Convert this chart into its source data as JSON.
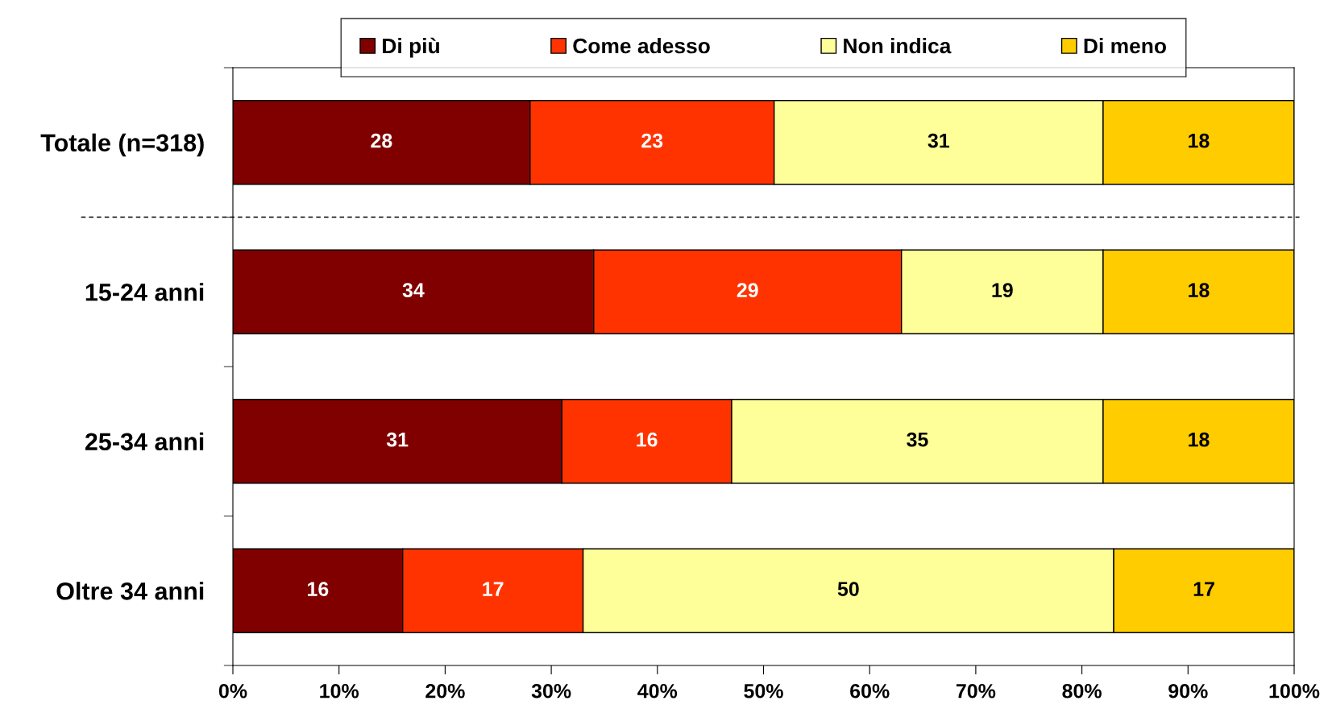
{
  "chart_data": {
    "type": "bar",
    "orientation": "horizontal",
    "stacked": true,
    "data_labels": true,
    "legend": "top",
    "grid": false,
    "categories": [
      "Totale (n=318)",
      "15-24 anni",
      "25-34 anni",
      "Oltre 34 anni"
    ],
    "series": [
      {
        "name": "Di più",
        "color": "#800000",
        "values": [
          28,
          34,
          31,
          16
        ]
      },
      {
        "name": "Come adesso",
        "color": "#ff3300",
        "values": [
          23,
          29,
          16,
          17
        ]
      },
      {
        "name": "Non indica",
        "color": "#ffff99",
        "values": [
          31,
          19,
          35,
          50
        ]
      },
      {
        "name": "Di meno",
        "color": "#ffcc00",
        "values": [
          18,
          18,
          18,
          17
        ]
      }
    ],
    "xlim": [
      0,
      100
    ],
    "xticks": [
      {
        "value": 0,
        "label": "0%"
      },
      {
        "value": 10,
        "label": "10%"
      },
      {
        "value": 20,
        "label": "20%"
      },
      {
        "value": 30,
        "label": "30%"
      },
      {
        "value": 40,
        "label": "40%"
      },
      {
        "value": 50,
        "label": "50%"
      },
      {
        "value": 60,
        "label": "60%"
      },
      {
        "value": 70,
        "label": "70%"
      },
      {
        "value": 80,
        "label": "80%"
      },
      {
        "value": 90,
        "label": "90%"
      },
      {
        "value": 100,
        "label": "100%"
      }
    ]
  }
}
